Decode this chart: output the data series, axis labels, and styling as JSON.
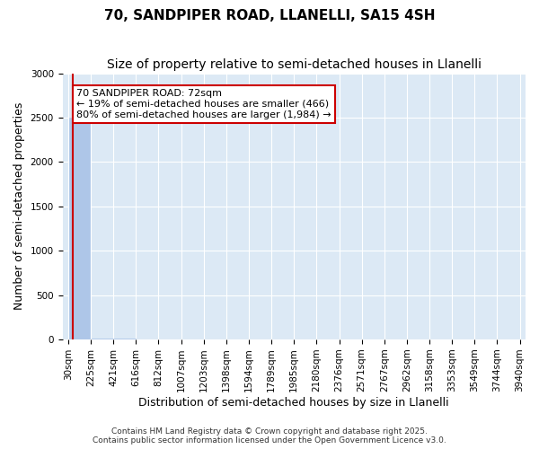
{
  "title": "70, SANDPIPER ROAD, LLANELLI, SA15 4SH",
  "subtitle": "Size of property relative to semi-detached houses in Llanelli",
  "xlabel": "Distribution of semi-detached houses by size in Llanelli",
  "ylabel": "Number of semi-detached properties",
  "footnote1": "Contains HM Land Registry data © Crown copyright and database right 2025.",
  "footnote2": "Contains public sector information licensed under the Open Government Licence v3.0.",
  "annotation_title": "70 SANDPIPER ROAD: 72sqm",
  "annotation_line1": "← 19% of semi-detached houses are smaller (466)",
  "annotation_line2": "80% of semi-detached houses are larger (1,984) →",
  "property_size": 72,
  "bar_edges": [
    30,
    225,
    421,
    616,
    812,
    1007,
    1203,
    1398,
    1594,
    1789,
    1985,
    2180,
    2376,
    2571,
    2767,
    2962,
    3158,
    3353,
    3549,
    3744,
    3940
  ],
  "bar_heights": [
    2500,
    10,
    5,
    3,
    2,
    1,
    1,
    1,
    0,
    0,
    0,
    0,
    0,
    0,
    0,
    0,
    0,
    0,
    0,
    0
  ],
  "bar_color": "#aec6e8",
  "bar_edge_color": "#aec6e8",
  "red_line_color": "#cc0000",
  "annotation_box_color": "#cc0000",
  "background_color": "#dce9f5",
  "ylim": [
    0,
    3000
  ],
  "yticks": [
    0,
    500,
    1000,
    1500,
    2000,
    2500,
    3000
  ],
  "grid_color": "#ffffff",
  "title_fontsize": 11,
  "subtitle_fontsize": 10,
  "axis_label_fontsize": 9,
  "tick_fontsize": 7.5,
  "annotation_fontsize": 8
}
